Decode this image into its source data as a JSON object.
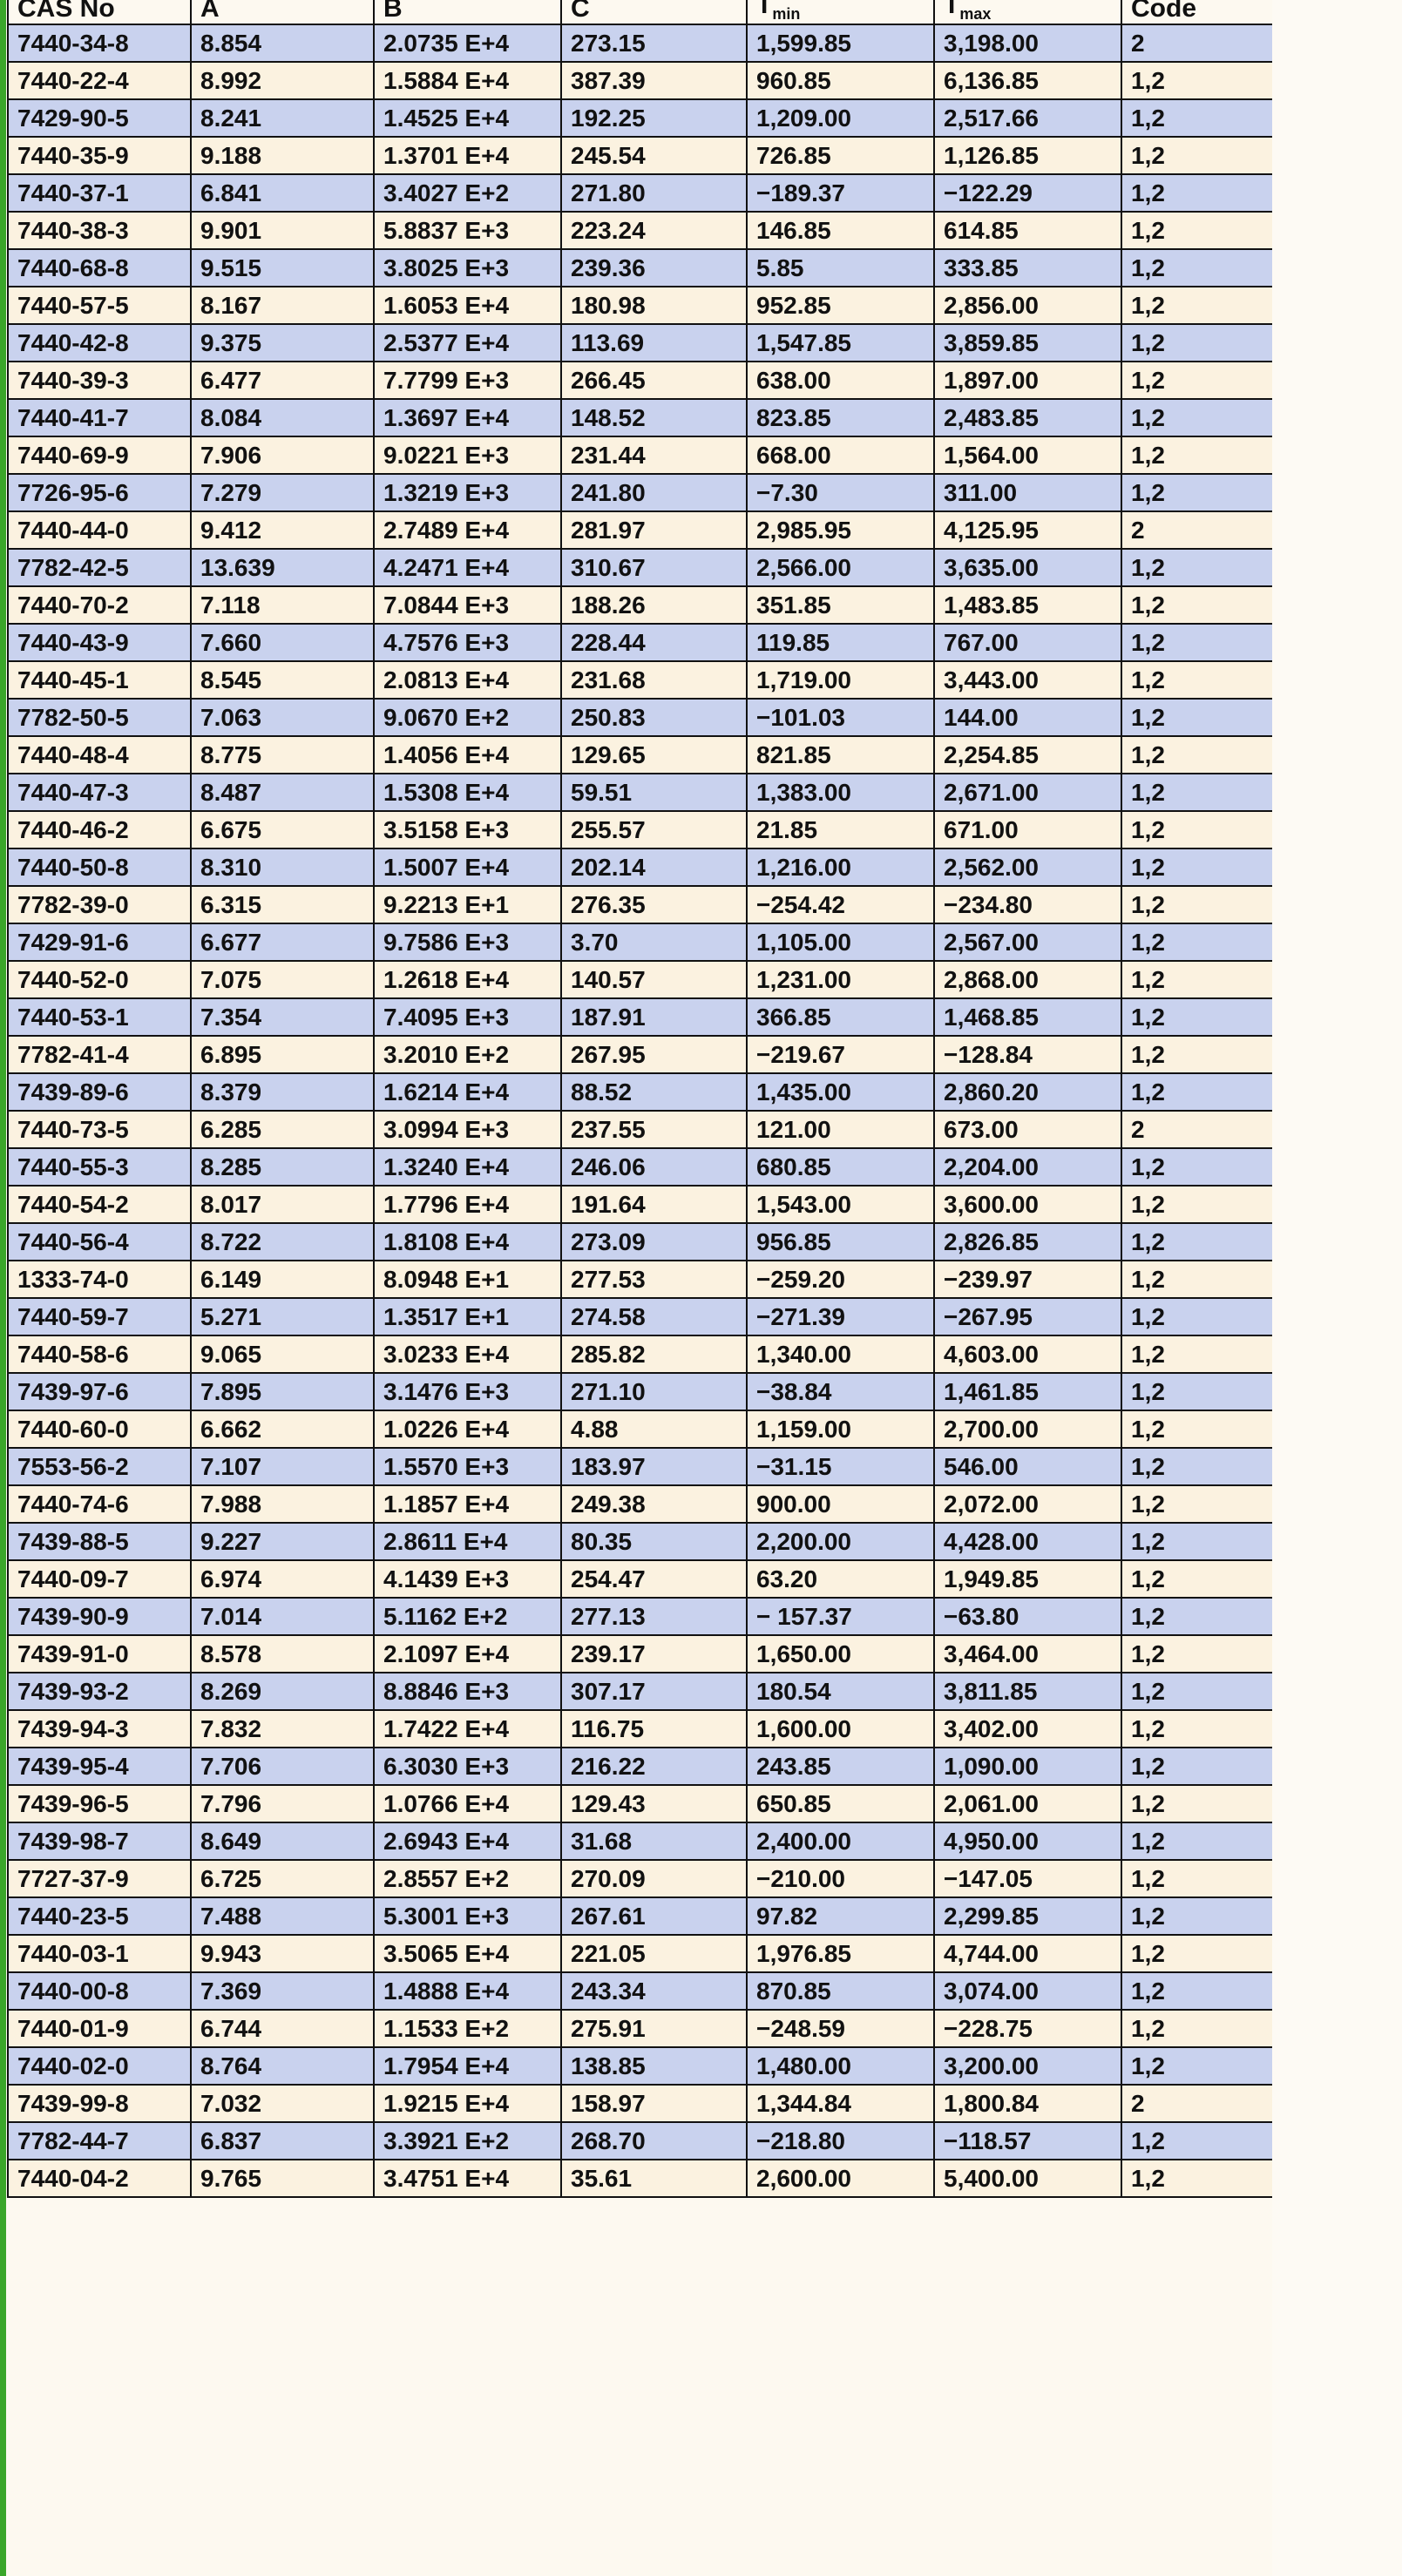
{
  "table": {
    "headers": [
      {
        "main": "CAS No",
        "sub": ""
      },
      {
        "main": "A",
        "sub": ""
      },
      {
        "main": "B",
        "sub": ""
      },
      {
        "main": "C",
        "sub": ""
      },
      {
        "main": "T",
        "sub": "min"
      },
      {
        "main": "T",
        "sub": "max"
      },
      {
        "main": "Code",
        "sub": ""
      }
    ],
    "rows": [
      [
        "7440-34-8",
        "8.854",
        "2.0735 E+4",
        "273.15",
        "1,599.85",
        "3,198.00",
        "2"
      ],
      [
        "7440-22-4",
        "8.992",
        "1.5884 E+4",
        "387.39",
        "960.85",
        "6,136.85",
        "1,2"
      ],
      [
        "7429-90-5",
        "8.241",
        "1.4525 E+4",
        "192.25",
        "1,209.00",
        "2,517.66",
        "1,2"
      ],
      [
        "7440-35-9",
        "9.188",
        "1.3701 E+4",
        "245.54",
        "726.85",
        "1,126.85",
        "1,2"
      ],
      [
        "7440-37-1",
        "6.841",
        "3.4027 E+2",
        "271.80",
        "−189.37",
        "−122.29",
        "1,2"
      ],
      [
        "7440-38-3",
        "9.901",
        "5.8837 E+3",
        "223.24",
        "146.85",
        "614.85",
        "1,2"
      ],
      [
        "7440-68-8",
        "9.515",
        "3.8025 E+3",
        "239.36",
        "5.85",
        "333.85",
        "1,2"
      ],
      [
        "7440-57-5",
        "8.167",
        "1.6053 E+4",
        "180.98",
        "952.85",
        "2,856.00",
        "1,2"
      ],
      [
        "7440-42-8",
        "9.375",
        "2.5377 E+4",
        "113.69",
        "1,547.85",
        "3,859.85",
        "1,2"
      ],
      [
        "7440-39-3",
        "6.477",
        "7.7799 E+3",
        "266.45",
        "638.00",
        "1,897.00",
        "1,2"
      ],
      [
        "7440-41-7",
        "8.084",
        "1.3697 E+4",
        "148.52",
        "823.85",
        "2,483.85",
        "1,2"
      ],
      [
        "7440-69-9",
        "7.906",
        "9.0221 E+3",
        "231.44",
        "668.00",
        "1,564.00",
        "1,2"
      ],
      [
        "7726-95-6",
        "7.279",
        "1.3219 E+3",
        "241.80",
        "−7.30",
        "311.00",
        "1,2"
      ],
      [
        "7440-44-0",
        "9.412",
        "2.7489 E+4",
        "281.97",
        "2,985.95",
        "4,125.95",
        "2"
      ],
      [
        "7782-42-5",
        "13.639",
        "4.2471 E+4",
        "310.67",
        "2,566.00",
        "3,635.00",
        "1,2"
      ],
      [
        "7440-70-2",
        "7.118",
        "7.0844 E+3",
        "188.26",
        "351.85",
        "1,483.85",
        "1,2"
      ],
      [
        "7440-43-9",
        "7.660",
        "4.7576 E+3",
        "228.44",
        "119.85",
        "767.00",
        "1,2"
      ],
      [
        "7440-45-1",
        "8.545",
        "2.0813 E+4",
        "231.68",
        "1,719.00",
        "3,443.00",
        "1,2"
      ],
      [
        "7782-50-5",
        "7.063",
        "9.0670 E+2",
        "250.83",
        "−101.03",
        "144.00",
        "1,2"
      ],
      [
        "7440-48-4",
        "8.775",
        "1.4056 E+4",
        "129.65",
        "821.85",
        "2,254.85",
        "1,2"
      ],
      [
        "7440-47-3",
        "8.487",
        "1.5308 E+4",
        "59.51",
        "1,383.00",
        "2,671.00",
        "1,2"
      ],
      [
        "7440-46-2",
        "6.675",
        "3.5158 E+3",
        "255.57",
        "21.85",
        "671.00",
        "1,2"
      ],
      [
        "7440-50-8",
        "8.310",
        "1.5007 E+4",
        "202.14",
        "1,216.00",
        "2,562.00",
        "1,2"
      ],
      [
        "7782-39-0",
        "6.315",
        "9.2213 E+1",
        "276.35",
        "−254.42",
        "−234.80",
        "1,2"
      ],
      [
        "7429-91-6",
        "6.677",
        "9.7586 E+3",
        "3.70",
        "1,105.00",
        "2,567.00",
        "1,2"
      ],
      [
        "7440-52-0",
        "7.075",
        "1.2618 E+4",
        "140.57",
        "1,231.00",
        "2,868.00",
        "1,2"
      ],
      [
        "7440-53-1",
        "7.354",
        "7.4095 E+3",
        "187.91",
        "366.85",
        "1,468.85",
        "1,2"
      ],
      [
        "7782-41-4",
        "6.895",
        "3.2010 E+2",
        "267.95",
        "−219.67",
        "−128.84",
        "1,2"
      ],
      [
        "7439-89-6",
        "8.379",
        "1.6214 E+4",
        "88.52",
        "1,435.00",
        "2,860.20",
        "1,2"
      ],
      [
        "7440-73-5",
        "6.285",
        "3.0994 E+3",
        "237.55",
        "121.00",
        "673.00",
        "2"
      ],
      [
        "7440-55-3",
        "8.285",
        "1.3240 E+4",
        "246.06",
        "680.85",
        "2,204.00",
        "1,2"
      ],
      [
        "7440-54-2",
        "8.017",
        "1.7796 E+4",
        "191.64",
        "1,543.00",
        "3,600.00",
        "1,2"
      ],
      [
        "7440-56-4",
        "8.722",
        "1.8108 E+4",
        "273.09",
        "956.85",
        "2,826.85",
        "1,2"
      ],
      [
        "1333-74-0",
        "6.149",
        "8.0948 E+1",
        "277.53",
        "−259.20",
        "−239.97",
        "1,2"
      ],
      [
        "7440-59-7",
        "5.271",
        "1.3517 E+1",
        "274.58",
        "−271.39",
        "−267.95",
        "1,2"
      ],
      [
        "7440-58-6",
        "9.065",
        "3.0233 E+4",
        "285.82",
        "1,340.00",
        "4,603.00",
        "1,2"
      ],
      [
        "7439-97-6",
        "7.895",
        "3.1476 E+3",
        "271.10",
        "−38.84",
        "1,461.85",
        "1,2"
      ],
      [
        "7440-60-0",
        "6.662",
        "1.0226 E+4",
        "4.88",
        "1,159.00",
        "2,700.00",
        "1,2"
      ],
      [
        "7553-56-2",
        "7.107",
        "1.5570 E+3",
        "183.97",
        "−31.15",
        "546.00",
        "1,2"
      ],
      [
        "7440-74-6",
        "7.988",
        "1.1857 E+4",
        "249.38",
        "900.00",
        "2,072.00",
        "1,2"
      ],
      [
        "7439-88-5",
        "9.227",
        "2.8611 E+4",
        "80.35",
        "2,200.00",
        "4,428.00",
        "1,2"
      ],
      [
        "7440-09-7",
        "6.974",
        "4.1439 E+3",
        "254.47",
        "63.20",
        "1,949.85",
        "1,2"
      ],
      [
        "7439-90-9",
        "7.014",
        "5.1162 E+2",
        "277.13",
        "− 157.37",
        "−63.80",
        "1,2"
      ],
      [
        "7439-91-0",
        "8.578",
        "2.1097 E+4",
        "239.17",
        "1,650.00",
        "3,464.00",
        "1,2"
      ],
      [
        "7439-93-2",
        "8.269",
        "8.8846 E+3",
        "307.17",
        "180.54",
        "3,811.85",
        "1,2"
      ],
      [
        "7439-94-3",
        "7.832",
        "1.7422 E+4",
        "116.75",
        "1,600.00",
        "3,402.00",
        "1,2"
      ],
      [
        "7439-95-4",
        "7.706",
        "6.3030 E+3",
        "216.22",
        "243.85",
        "1,090.00",
        "1,2"
      ],
      [
        "7439-96-5",
        "7.796",
        "1.0766 E+4",
        "129.43",
        "650.85",
        "2,061.00",
        "1,2"
      ],
      [
        "7439-98-7",
        "8.649",
        "2.6943 E+4",
        "31.68",
        "2,400.00",
        "4,950.00",
        "1,2"
      ],
      [
        "7727-37-9",
        "6.725",
        "2.8557 E+2",
        "270.09",
        "−210.00",
        "−147.05",
        "1,2"
      ],
      [
        "7440-23-5",
        "7.488",
        "5.3001 E+3",
        "267.61",
        "97.82",
        "2,299.85",
        "1,2"
      ],
      [
        "7440-03-1",
        "9.943",
        "3.5065 E+4",
        "221.05",
        "1,976.85",
        "4,744.00",
        "1,2"
      ],
      [
        "7440-00-8",
        "7.369",
        "1.4888 E+4",
        "243.34",
        "870.85",
        "3,074.00",
        "1,2"
      ],
      [
        "7440-01-9",
        "6.744",
        "1.1533 E+2",
        "275.91",
        "−248.59",
        "−228.75",
        "1,2"
      ],
      [
        "7440-02-0",
        "8.764",
        "1.7954 E+4",
        "138.85",
        "1,480.00",
        "3,200.00",
        "1,2"
      ],
      [
        "7439-99-8",
        "7.032",
        "1.9215 E+4",
        "158.97",
        "1,344.84",
        "1,800.84",
        "2"
      ],
      [
        "7782-44-7",
        "6.837",
        "3.3921 E+2",
        "268.70",
        "−218.80",
        "−118.57",
        "1,2"
      ],
      [
        "7440-04-2",
        "9.765",
        "3.4751 E+4",
        "35.61",
        "2,600.00",
        "5,400.00",
        "1,2"
      ]
    ]
  }
}
